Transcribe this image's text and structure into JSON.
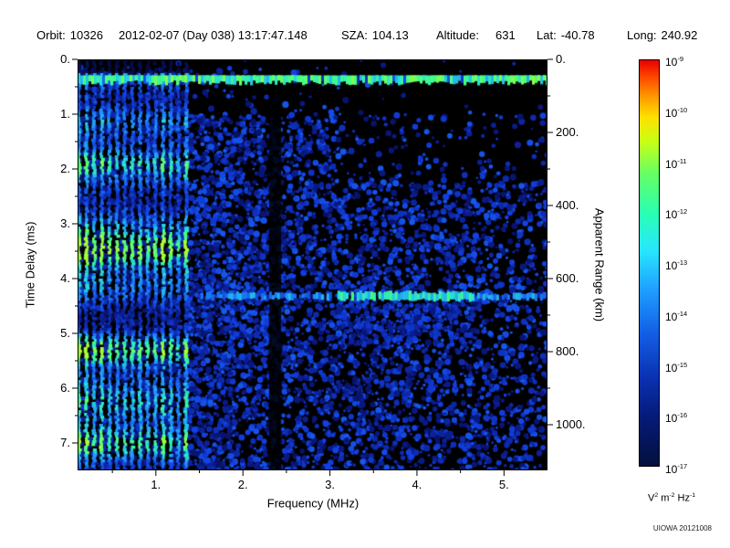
{
  "header": {
    "orbit_label": "Orbit:",
    "orbit_value": "10326",
    "datetime": "2012-02-07 (Day 038) 13:17:47.148",
    "sza_label": "SZA:",
    "sza_value": "104.13",
    "altitude_label": "Altitude:",
    "altitude_value": "631",
    "lat_label": "Lat:",
    "lat_value": "-40.78",
    "long_label": "Long:",
    "long_value": "240.92"
  },
  "credit": "UIOWA 20121008",
  "chart_data": {
    "type": "heatmap",
    "title": "",
    "xlabel": "Frequency (MHz)",
    "ylabel": "Time Delay (ms)",
    "ylabel_right": "Apparent Range (km)",
    "x_range_mhz": [
      0.1,
      5.5
    ],
    "x_ticks": [
      "1.",
      "2.",
      "3.",
      "4.",
      "5."
    ],
    "x_tick_values": [
      1,
      2,
      3,
      4,
      5
    ],
    "y_range_ms": [
      0,
      7.5
    ],
    "y_ticks": [
      "0.",
      "1.",
      "2.",
      "3.",
      "4.",
      "5.",
      "6.",
      "7."
    ],
    "y_tick_values": [
      0,
      1,
      2,
      3,
      4,
      5,
      6,
      7
    ],
    "right_axis_ticks": [
      "0.",
      "200.",
      "400.",
      "600.",
      "800.",
      "1000."
    ],
    "right_axis_values_km": [
      0,
      200,
      400,
      600,
      800,
      1000
    ],
    "km_per_ms": 150,
    "colorbar": {
      "tick_exponents": [
        -9,
        -10,
        -11,
        -12,
        -13,
        -14,
        -15,
        -16,
        -17
      ],
      "unit_parts": [
        [
          "V",
          "2"
        ],
        [
          "m",
          "-2"
        ],
        [
          "Hz",
          "-1"
        ]
      ],
      "top_color": "#e80000",
      "bottom_color": "#03103c"
    },
    "features": {
      "background": "black",
      "noise_color": "blue",
      "plasma_stripe_region_max_mhz": 1.35,
      "stripe_spacing_mhz": 0.088,
      "stripe_knot_delays_ms": [
        1.85,
        3.5,
        5.3,
        6.95
      ],
      "surface_band_delay_ms": 0.36,
      "ionosphere_echo_delay_ms": 4.32,
      "ionosphere_echo_min_mhz": 1.45,
      "echo_bright_range_mhz": [
        3.05,
        4.65
      ],
      "dark_column_mhz": [
        2.3,
        2.44
      ]
    }
  }
}
